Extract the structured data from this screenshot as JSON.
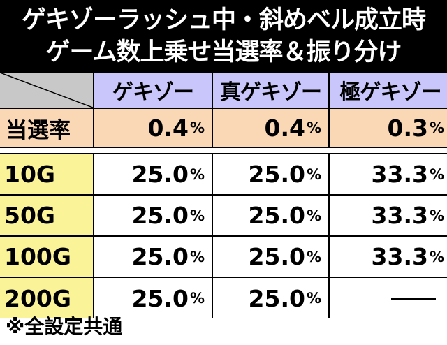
{
  "title": {
    "line1": "ゲキゾーラッシュ中・斜めベル成立時",
    "line2": "ゲーム数上乗せ当選率＆振り分け"
  },
  "table": {
    "columns": [
      "ゲキゾー",
      "真ゲキゾー",
      "極ゲキゾー"
    ],
    "rate_row": {
      "label": "当選率",
      "values": [
        {
          "num": "0.4",
          "unit": "%"
        },
        {
          "num": "0.4",
          "unit": "%"
        },
        {
          "num": "0.3",
          "unit": "%"
        }
      ]
    },
    "rows": [
      {
        "label": "10G",
        "values": [
          {
            "num": "25.0",
            "unit": "%"
          },
          {
            "num": "25.0",
            "unit": "%"
          },
          {
            "num": "33.3",
            "unit": "%"
          }
        ]
      },
      {
        "label": "50G",
        "values": [
          {
            "num": "25.0",
            "unit": "%"
          },
          {
            "num": "25.0",
            "unit": "%"
          },
          {
            "num": "33.3",
            "unit": "%"
          }
        ]
      },
      {
        "label": "100G",
        "values": [
          {
            "num": "25.0",
            "unit": "%"
          },
          {
            "num": "25.0",
            "unit": "%"
          },
          {
            "num": "33.3",
            "unit": "%"
          }
        ]
      },
      {
        "label": "200G",
        "values": [
          {
            "num": "25.0",
            "unit": "%"
          },
          {
            "num": "25.0",
            "unit": "%"
          },
          {
            "num": "",
            "unit": ""
          }
        ]
      }
    ]
  },
  "footnote": "※全設定共通",
  "colors": {
    "title_bg": "#000000",
    "header_bg": "#c9c6fb",
    "rate_bg": "#fad8b5",
    "game_label_bg": "#fbf398",
    "corner_bg": "#c8c8c8"
  }
}
